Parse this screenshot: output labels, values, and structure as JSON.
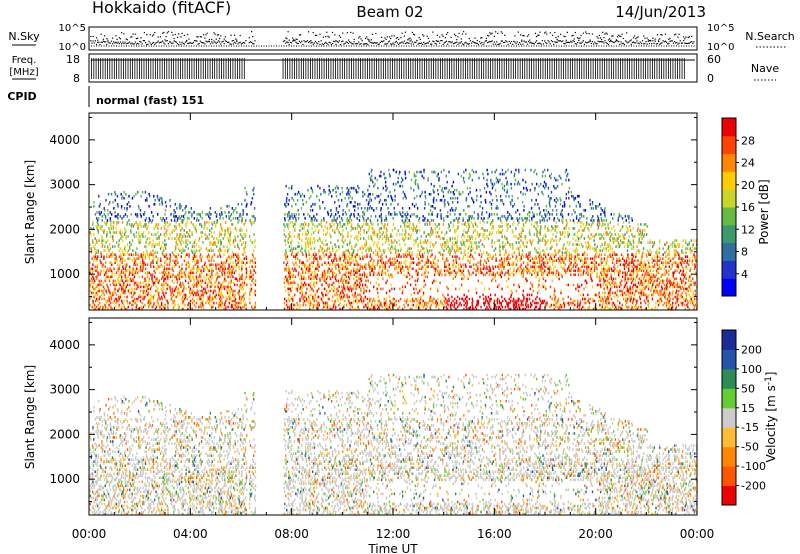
{
  "header": {
    "station": "Hokkaido (fitACF)",
    "beam": "Beam 02",
    "date": "14/Jun/2013"
  },
  "status_panel": {
    "nsky_label": "N.Sky",
    "nsearch_label": "N.Search",
    "nsky_ticks": [
      "10^5",
      "10^0"
    ],
    "nsearch_ticks": [
      "10^5",
      "10^0"
    ],
    "freq_label_line1": "Freq.",
    "freq_label_line2": "[MHz]",
    "freq_ticks": [
      "18",
      "8"
    ],
    "nave_label": "Nave",
    "nave_ticks": [
      "60",
      "0"
    ],
    "cpid_label": "CPID",
    "cpid_value": "normal (fast) 151"
  },
  "chart_data": [
    {
      "type": "heatmap",
      "name": "power",
      "ylabel": "Slant Range [km]",
      "xlabel": "",
      "ylim": [
        200,
        4600
      ],
      "yticks": [
        {
          "value": 1000,
          "label": "1000"
        },
        {
          "value": 2000,
          "label": "2000"
        },
        {
          "value": 3000,
          "label": "3000"
        },
        {
          "value": 4000,
          "label": "4000"
        }
      ],
      "colorbar": {
        "label": "Power [dB]",
        "range": [
          0,
          32
        ],
        "ticks": [
          {
            "value": 4,
            "label": "4"
          },
          {
            "value": 8,
            "label": "8"
          },
          {
            "value": 12,
            "label": "12"
          },
          {
            "value": 16,
            "label": "16"
          },
          {
            "value": 20,
            "label": "20"
          },
          {
            "value": 24,
            "label": "24"
          },
          {
            "value": 28,
            "label": "28"
          }
        ],
        "colors": [
          "#0000ff",
          "#2233cc",
          "#2f6fa0",
          "#3a9a6a",
          "#66bb44",
          "#c8d62a",
          "#ffcc00",
          "#ff8800",
          "#ff4400",
          "#ee0000"
        ]
      }
    },
    {
      "type": "heatmap",
      "name": "velocity",
      "ylabel": "Slant Range [km]",
      "xlabel": "Time UT",
      "ylim": [
        200,
        4600
      ],
      "yticks": [
        {
          "value": 1000,
          "label": "1000"
        },
        {
          "value": 2000,
          "label": "2000"
        },
        {
          "value": 3000,
          "label": "3000"
        },
        {
          "value": 4000,
          "label": "4000"
        }
      ],
      "xticks": [
        "00:00",
        "04:00",
        "08:00",
        "12:00",
        "16:00",
        "20:00",
        "00:00"
      ],
      "colorbar": {
        "label": "Velocity [m s^-1]",
        "ticks": [
          "-200",
          "-100",
          "-50",
          "-15",
          "15",
          "50",
          "100",
          "200"
        ],
        "colors": [
          "#ee0000",
          "#ff5500",
          "#ff8800",
          "#ffbb33",
          "#cccccc",
          "#66cc33",
          "#2e8b57",
          "#2255aa",
          "#1a2a99"
        ]
      }
    }
  ]
}
